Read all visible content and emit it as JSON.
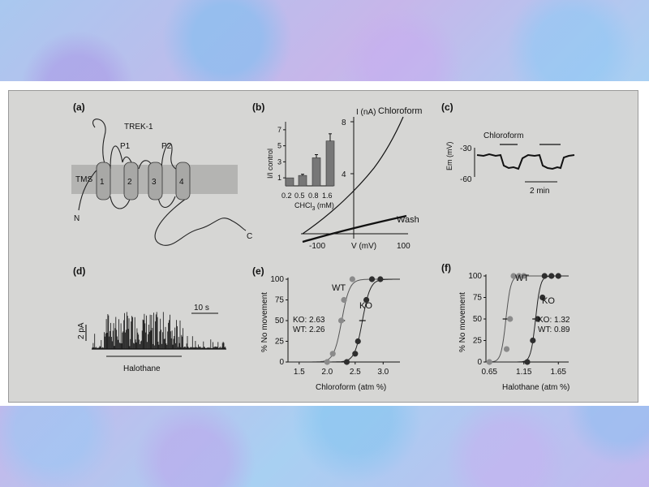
{
  "panels": {
    "a": {
      "tag": "(a)",
      "protein": "TREK-1",
      "p1": "P1",
      "p2": "P2",
      "tms": "TMS",
      "helices": [
        "1",
        "2",
        "3",
        "4"
      ],
      "n_term": "N",
      "c_term": "C"
    },
    "b": {
      "tag": "(b)",
      "inset": {
        "ylabel": "I/I control",
        "xlabel_main": "CHCl",
        "xlabel_sub": "3",
        "xlabel_unit": " (mM)",
        "yticks": [
          "1",
          "3",
          "5",
          "7"
        ],
        "xticks": [
          "0.2",
          "0.5",
          "0.8",
          "1.6"
        ],
        "values": [
          1.0,
          1.3,
          3.5,
          5.6
        ]
      },
      "iv": {
        "ylabel": "I (nA)",
        "xlabel": "V (mV)",
        "yticks": [
          "4",
          "8"
        ],
        "xticks": [
          "-100",
          "100"
        ],
        "curve_chloroform": "Chloroform",
        "curve_wash": "Wash"
      }
    },
    "c": {
      "tag": "(c)",
      "drug": "Chloroform",
      "ylabel": "Em (mV)",
      "yticks": [
        "-30",
        "-60"
      ],
      "scale": "2 min"
    },
    "d": {
      "tag": "(d)",
      "scale_time": "10 s",
      "scale_current": "2 pA",
      "drug": "Halothane"
    },
    "e": {
      "tag": "(e)",
      "ylabel": "% No movement",
      "xlabel": "Chloroform (atm %)",
      "yticks": [
        "0",
        "25",
        "50",
        "75",
        "100"
      ],
      "xticks": [
        "1.5",
        "2.0",
        "2.5",
        "3.0"
      ],
      "wt_label": "WT",
      "ko_label": "KO",
      "ko_value": "KO: 2.63",
      "wt_value": "WT: 2.26",
      "wt_points": [
        [
          2.0,
          0
        ],
        [
          2.1,
          10
        ],
        [
          2.25,
          50
        ],
        [
          2.3,
          75
        ],
        [
          2.45,
          100
        ]
      ],
      "ko_points": [
        [
          2.35,
          0
        ],
        [
          2.5,
          10
        ],
        [
          2.55,
          25
        ],
        [
          2.7,
          75
        ],
        [
          2.8,
          100
        ],
        [
          2.95,
          100
        ]
      ]
    },
    "f": {
      "tag": "(f)",
      "ylabel": "% No movement",
      "xlabel": "Halothane (atm %)",
      "yticks": [
        "0",
        "25",
        "50",
        "75",
        "100"
      ],
      "xticks": [
        "0.65",
        "1.15",
        "1.65"
      ],
      "wt_label": "WT",
      "ko_label": "KO",
      "ko_value": "KO: 1.32",
      "wt_value": "WT: 0.89",
      "wt_points": [
        [
          0.65,
          0
        ],
        [
          0.9,
          15
        ],
        [
          0.95,
          50
        ],
        [
          1.0,
          100
        ],
        [
          1.08,
          100
        ],
        [
          1.15,
          100
        ]
      ],
      "ko_points": [
        [
          1.2,
          0
        ],
        [
          1.28,
          25
        ],
        [
          1.35,
          50
        ],
        [
          1.42,
          75
        ],
        [
          1.45,
          100
        ],
        [
          1.55,
          100
        ],
        [
          1.65,
          100
        ]
      ]
    }
  },
  "colors": {
    "figure_bg": "#d6d6d4",
    "wt": "#8a8a8a",
    "ko": "#2e2e2e",
    "bar": "#777777"
  }
}
